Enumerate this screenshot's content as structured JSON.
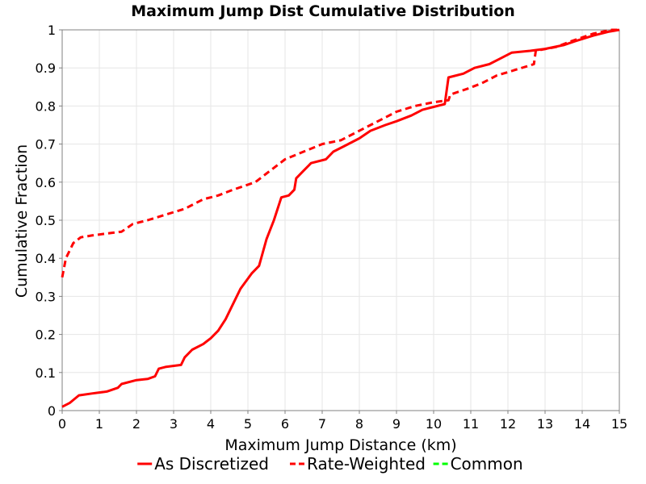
{
  "chart_data": {
    "type": "line",
    "title": "Maximum Jump Dist Cumulative Distribution",
    "xlabel": "Maximum Jump Distance (km)",
    "ylabel": "Cumulative Fraction",
    "xlim": [
      0,
      15
    ],
    "ylim": [
      0,
      1
    ],
    "x_ticks": [
      "0",
      "1",
      "2",
      "3",
      "4",
      "5",
      "6",
      "7",
      "8",
      "9",
      "10",
      "11",
      "12",
      "13",
      "14",
      "15"
    ],
    "y_ticks": [
      "0",
      "0.1",
      "0.2",
      "0.3",
      "0.4",
      "0.5",
      "0.6",
      "0.7",
      "0.8",
      "0.9",
      "1"
    ],
    "grid": true,
    "legend_position": "bottom",
    "series": [
      {
        "name": "As Discretized",
        "color": "#ff0000",
        "dash": "solid",
        "points": [
          [
            0,
            0.01
          ],
          [
            0.2,
            0.02
          ],
          [
            0.45,
            0.04
          ],
          [
            0.8,
            0.045
          ],
          [
            1.2,
            0.05
          ],
          [
            1.5,
            0.06
          ],
          [
            1.6,
            0.07
          ],
          [
            2.0,
            0.08
          ],
          [
            2.3,
            0.083
          ],
          [
            2.5,
            0.09
          ],
          [
            2.6,
            0.11
          ],
          [
            2.8,
            0.115
          ],
          [
            3.2,
            0.12
          ],
          [
            3.3,
            0.14
          ],
          [
            3.5,
            0.16
          ],
          [
            3.8,
            0.175
          ],
          [
            4.0,
            0.19
          ],
          [
            4.2,
            0.21
          ],
          [
            4.4,
            0.24
          ],
          [
            4.6,
            0.28
          ],
          [
            4.8,
            0.32
          ],
          [
            5.1,
            0.36
          ],
          [
            5.3,
            0.38
          ],
          [
            5.5,
            0.45
          ],
          [
            5.7,
            0.5
          ],
          [
            5.9,
            0.56
          ],
          [
            6.1,
            0.565
          ],
          [
            6.25,
            0.58
          ],
          [
            6.3,
            0.61
          ],
          [
            6.5,
            0.63
          ],
          [
            6.7,
            0.65
          ],
          [
            7.1,
            0.66
          ],
          [
            7.3,
            0.68
          ],
          [
            7.6,
            0.695
          ],
          [
            8.0,
            0.715
          ],
          [
            8.3,
            0.735
          ],
          [
            8.7,
            0.75
          ],
          [
            9.0,
            0.76
          ],
          [
            9.4,
            0.775
          ],
          [
            9.7,
            0.79
          ],
          [
            10.3,
            0.805
          ],
          [
            10.4,
            0.875
          ],
          [
            10.8,
            0.885
          ],
          [
            11.1,
            0.9
          ],
          [
            11.5,
            0.91
          ],
          [
            11.8,
            0.925
          ],
          [
            12.1,
            0.94
          ],
          [
            12.6,
            0.945
          ],
          [
            13.0,
            0.95
          ],
          [
            13.5,
            0.96
          ],
          [
            13.8,
            0.97
          ],
          [
            14.3,
            0.985
          ],
          [
            14.7,
            0.995
          ],
          [
            15.0,
            1.0
          ]
        ]
      },
      {
        "name": "Rate-Weighted",
        "color": "#ff0000",
        "dash": "dashed",
        "points": [
          [
            0,
            0.35
          ],
          [
            0.1,
            0.4
          ],
          [
            0.3,
            0.44
          ],
          [
            0.5,
            0.455
          ],
          [
            0.8,
            0.46
          ],
          [
            1.2,
            0.465
          ],
          [
            1.6,
            0.47
          ],
          [
            1.9,
            0.49
          ],
          [
            2.3,
            0.5
          ],
          [
            2.8,
            0.515
          ],
          [
            3.3,
            0.53
          ],
          [
            3.8,
            0.555
          ],
          [
            4.2,
            0.565
          ],
          [
            4.6,
            0.58
          ],
          [
            5.2,
            0.6
          ],
          [
            5.6,
            0.63
          ],
          [
            6.0,
            0.66
          ],
          [
            6.5,
            0.68
          ],
          [
            7.0,
            0.7
          ],
          [
            7.5,
            0.71
          ],
          [
            8.0,
            0.735
          ],
          [
            8.5,
            0.76
          ],
          [
            9.0,
            0.785
          ],
          [
            9.5,
            0.8
          ],
          [
            10.0,
            0.81
          ],
          [
            10.4,
            0.815
          ],
          [
            10.45,
            0.83
          ],
          [
            10.9,
            0.845
          ],
          [
            11.3,
            0.86
          ],
          [
            11.7,
            0.88
          ],
          [
            12.2,
            0.895
          ],
          [
            12.7,
            0.91
          ],
          [
            12.75,
            0.945
          ],
          [
            13.3,
            0.955
          ],
          [
            13.7,
            0.97
          ],
          [
            14.0,
            0.98
          ],
          [
            14.3,
            0.99
          ],
          [
            14.8,
            1.0
          ],
          [
            15.0,
            1.0
          ]
        ]
      },
      {
        "name": "Common",
        "color": "#00ff00",
        "dash": "dashed",
        "points": []
      }
    ]
  }
}
